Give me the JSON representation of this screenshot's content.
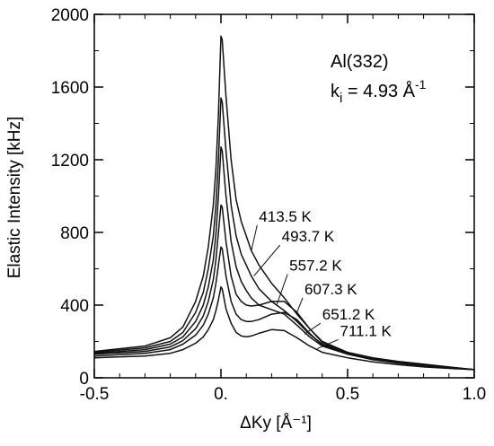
{
  "chart_data": {
    "type": "line",
    "xlabel": "ΔKy [Å⁻¹]",
    "ylabel": "Elastic Intensity [kHz]",
    "xlim": [
      -0.5,
      1.0
    ],
    "ylim": [
      0,
      2000
    ],
    "x_ticks": [
      -0.5,
      0.0,
      0.5,
      1.0
    ],
    "x_tick_labels": [
      "-0.5",
      "0.",
      "0.5",
      "1.0"
    ],
    "y_ticks": [
      0,
      400,
      800,
      1200,
      1600,
      2000
    ],
    "y_tick_labels": [
      "0",
      "400",
      "800",
      "1200",
      "1600",
      "2000"
    ],
    "grid": false,
    "annotation": {
      "sample": "Al(332)",
      "ki_prefix": "k",
      "ki_sub": "i",
      "ki_value": " = 4.93 Å",
      "ki_sup": "-1"
    },
    "series": [
      {
        "name": "413.5 K",
        "x": [
          -0.5,
          -0.3,
          -0.2,
          -0.15,
          -0.1,
          -0.07,
          -0.05,
          -0.03,
          -0.02,
          -0.01,
          0.0,
          0.005,
          0.02,
          0.04,
          0.06,
          0.08,
          0.1,
          0.12,
          0.15,
          0.2,
          0.25,
          0.3,
          0.35,
          0.4,
          0.5,
          0.6,
          0.7,
          0.8,
          0.9,
          1.0
        ],
        "y": [
          145,
          175,
          220,
          280,
          420,
          560,
          720,
          950,
          1150,
          1450,
          1880,
          1860,
          1550,
          1200,
          980,
          860,
          780,
          700,
          620,
          520,
          440,
          350,
          270,
          200,
          140,
          110,
          90,
          75,
          60,
          45
        ]
      },
      {
        "name": "493.7 K",
        "x": [
          -0.5,
          -0.3,
          -0.2,
          -0.15,
          -0.1,
          -0.07,
          -0.05,
          -0.03,
          -0.02,
          -0.01,
          0.0,
          0.005,
          0.02,
          0.04,
          0.06,
          0.08,
          0.1,
          0.12,
          0.15,
          0.2,
          0.25,
          0.3,
          0.35,
          0.4,
          0.5,
          0.6,
          0.7,
          0.8,
          0.9,
          1.0
        ],
        "y": [
          140,
          165,
          200,
          250,
          360,
          470,
          600,
          780,
          950,
          1200,
          1540,
          1520,
          1250,
          950,
          780,
          680,
          620,
          560,
          490,
          420,
          370,
          310,
          240,
          185,
          135,
          105,
          85,
          70,
          58,
          45
        ]
      },
      {
        "name": "557.2 K",
        "x": [
          -0.5,
          -0.3,
          -0.2,
          -0.15,
          -0.1,
          -0.07,
          -0.05,
          -0.03,
          -0.02,
          -0.01,
          0.0,
          0.005,
          0.02,
          0.04,
          0.06,
          0.08,
          0.1,
          0.12,
          0.15,
          0.2,
          0.25,
          0.3,
          0.35,
          0.4,
          0.5,
          0.6,
          0.7,
          0.8,
          0.9,
          1.0
        ],
        "y": [
          135,
          155,
          185,
          225,
          310,
          400,
          500,
          650,
          790,
          1000,
          1270,
          1250,
          1000,
          750,
          610,
          530,
          480,
          440,
          400,
          375,
          350,
          290,
          225,
          175,
          130,
          100,
          82,
          68,
          56,
          45
        ]
      },
      {
        "name": "607.3 K",
        "x": [
          -0.5,
          -0.3,
          -0.2,
          -0.15,
          -0.1,
          -0.07,
          -0.05,
          -0.03,
          -0.02,
          -0.01,
          0.0,
          0.005,
          0.02,
          0.04,
          0.06,
          0.08,
          0.1,
          0.12,
          0.15,
          0.2,
          0.25,
          0.3,
          0.35,
          0.4,
          0.5,
          0.6,
          0.7,
          0.8,
          0.9,
          1.0
        ],
        "y": [
          130,
          145,
          170,
          205,
          270,
          340,
          420,
          540,
          650,
          800,
          950,
          940,
          750,
          560,
          460,
          420,
          400,
          395,
          400,
          420,
          420,
          360,
          270,
          195,
          135,
          102,
          82,
          68,
          56,
          45
        ]
      },
      {
        "name": "651.2 K",
        "x": [
          -0.5,
          -0.3,
          -0.2,
          -0.15,
          -0.1,
          -0.07,
          -0.05,
          -0.03,
          -0.02,
          -0.01,
          0.0,
          0.005,
          0.02,
          0.04,
          0.06,
          0.08,
          0.1,
          0.12,
          0.15,
          0.2,
          0.25,
          0.3,
          0.35,
          0.4,
          0.5,
          0.6,
          0.7,
          0.8,
          0.9,
          1.0
        ],
        "y": [
          120,
          135,
          155,
          185,
          235,
          290,
          350,
          440,
          520,
          620,
          720,
          710,
          560,
          420,
          350,
          320,
          310,
          310,
          320,
          350,
          360,
          320,
          245,
          180,
          130,
          100,
          80,
          66,
          55,
          45
        ]
      },
      {
        "name": "711.1 K",
        "x": [
          -0.5,
          -0.3,
          -0.2,
          -0.15,
          -0.1,
          -0.07,
          -0.05,
          -0.03,
          -0.02,
          -0.01,
          0.0,
          0.005,
          0.02,
          0.04,
          0.06,
          0.08,
          0.1,
          0.12,
          0.15,
          0.2,
          0.25,
          0.3,
          0.35,
          0.4,
          0.5,
          0.6,
          0.7,
          0.8,
          0.9,
          1.0
        ],
        "y": [
          110,
          120,
          135,
          155,
          190,
          225,
          265,
          320,
          370,
          430,
          500,
          490,
          380,
          300,
          250,
          230,
          225,
          230,
          245,
          265,
          260,
          220,
          175,
          140,
          110,
          88,
          72,
          60,
          52,
          45
        ]
      }
    ],
    "series_labels": [
      {
        "text": "413.5 K",
        "x": 0.15,
        "y": 860,
        "tip_x": 0.12,
        "tip_y": 700
      },
      {
        "text": "493.7 K",
        "x": 0.24,
        "y": 750,
        "tip_x": 0.13,
        "tip_y": 560
      },
      {
        "text": "557.2 K",
        "x": 0.27,
        "y": 590,
        "tip_x": 0.22,
        "tip_y": 400
      },
      {
        "text": "607.3 K",
        "x": 0.33,
        "y": 460,
        "tip_x": 0.3,
        "tip_y": 360
      },
      {
        "text": "651.2 K",
        "x": 0.4,
        "y": 320,
        "tip_x": 0.33,
        "tip_y": 240
      },
      {
        "text": "711.1 K",
        "x": 0.47,
        "y": 230,
        "tip_x": 0.38,
        "tip_y": 160
      }
    ]
  }
}
